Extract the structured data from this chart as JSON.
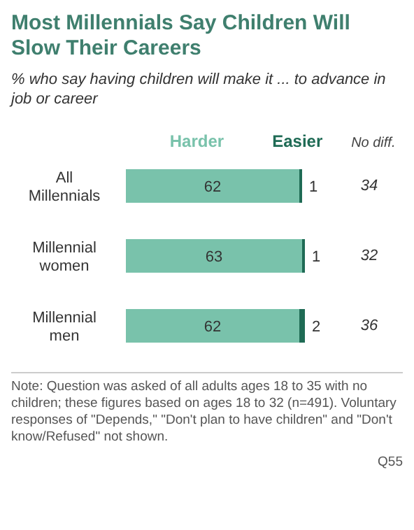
{
  "chart_data": {
    "type": "bar",
    "orientation": "horizontal",
    "stacked": true,
    "title": "Most Millennials Say Children Will Slow Their Careers",
    "subtitle": "% who say having children will make it ... to advance in job or career",
    "categories": [
      "All Millennials",
      "Millennial women",
      "Millennial men"
    ],
    "series": [
      {
        "name": "Harder",
        "color": "#79c2ab",
        "values": [
          62,
          63,
          62
        ]
      },
      {
        "name": "Easier",
        "color": "#1f6b55",
        "values": [
          1,
          1,
          2
        ]
      }
    ],
    "data_labels": true,
    "legend": "top",
    "annotations": [
      "No diff.",
      "34",
      "32",
      "36",
      "Note: Question was asked of all adults ages 18 to 35 with no children; these figures based on ages 18 to 32 (n=491). Voluntary responses of \"Depends,\" \"Don't plan to have children\" and \"Don't know/Refused\" not shown.",
      "Q55"
    ]
  }
}
